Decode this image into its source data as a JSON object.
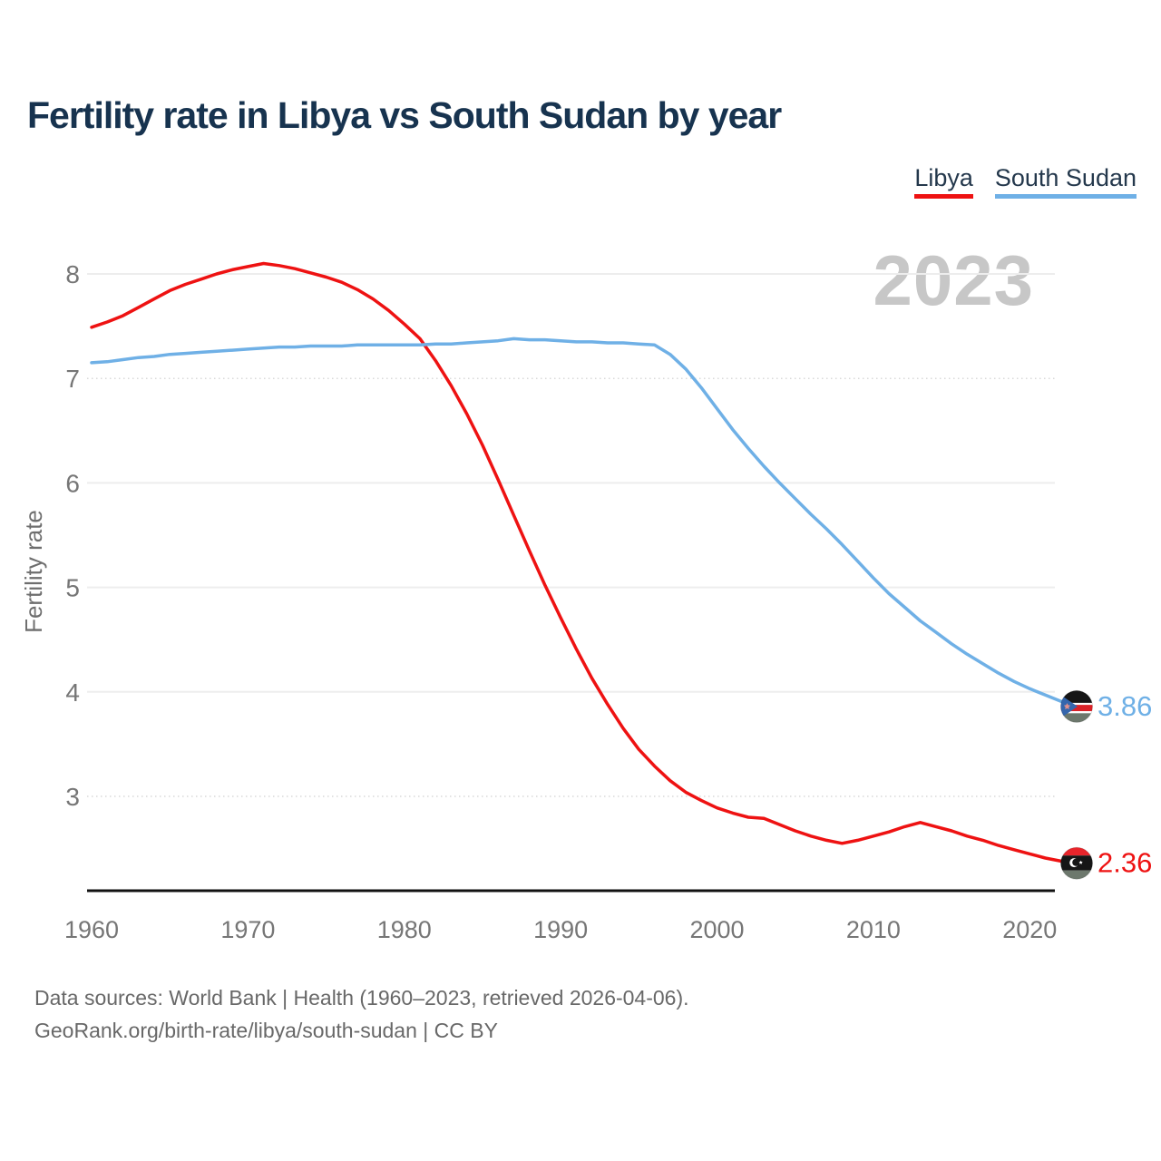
{
  "header": {
    "title": "Fertility rate in Libya vs South Sudan by year"
  },
  "legend": {
    "items": [
      {
        "label": "Libya",
        "color": "#ee1212"
      },
      {
        "label": "South Sudan",
        "color": "#6fb0e6"
      }
    ]
  },
  "chart_data": {
    "type": "line",
    "title": "Fertility rate in Libya vs South Sudan by year",
    "ylabel": "Fertility rate",
    "xlabel": "",
    "year_watermark": "2023",
    "grid": "horizontal",
    "legend_position": "top-right",
    "xlim": [
      1960,
      2023
    ],
    "ylim": [
      2.07,
      8.28
    ],
    "x_ticks": [
      1960,
      1970,
      1980,
      1990,
      2000,
      2010,
      2020
    ],
    "y_ticks": [
      {
        "value": 8,
        "style": "solid"
      },
      {
        "value": 7,
        "style": "dotted"
      },
      {
        "value": 6,
        "style": "solid"
      },
      {
        "value": 5,
        "style": "solid"
      },
      {
        "value": 4,
        "style": "solid"
      },
      {
        "value": 3,
        "style": "dotted"
      }
    ],
    "years": [
      1960,
      1961,
      1962,
      1963,
      1964,
      1965,
      1966,
      1967,
      1968,
      1969,
      1970,
      1971,
      1972,
      1973,
      1974,
      1975,
      1976,
      1977,
      1978,
      1979,
      1980,
      1981,
      1982,
      1983,
      1984,
      1985,
      1986,
      1987,
      1988,
      1989,
      1990,
      1991,
      1992,
      1993,
      1994,
      1995,
      1996,
      1997,
      1998,
      1999,
      2000,
      2001,
      2002,
      2003,
      2004,
      2005,
      2006,
      2007,
      2008,
      2009,
      2010,
      2011,
      2012,
      2013,
      2014,
      2015,
      2016,
      2017,
      2018,
      2019,
      2020,
      2021,
      2022,
      2023
    ],
    "series": [
      {
        "name": "Libya",
        "color": "#ee1212",
        "values": [
          7.49,
          7.54,
          7.6,
          7.68,
          7.76,
          7.84,
          7.9,
          7.95,
          8.0,
          8.04,
          8.07,
          8.1,
          8.08,
          8.05,
          8.01,
          7.97,
          7.92,
          7.85,
          7.76,
          7.65,
          7.52,
          7.38,
          7.17,
          6.93,
          6.66,
          6.36,
          6.03,
          5.69,
          5.35,
          5.02,
          4.71,
          4.41,
          4.13,
          3.88,
          3.65,
          3.45,
          3.29,
          3.15,
          3.04,
          2.96,
          2.89,
          2.84,
          2.8,
          2.79,
          2.73,
          2.67,
          2.62,
          2.58,
          2.55,
          2.58,
          2.62,
          2.66,
          2.71,
          2.75,
          2.71,
          2.67,
          2.62,
          2.58,
          2.53,
          2.49,
          2.45,
          2.41,
          2.38,
          2.36
        ]
      },
      {
        "name": "South Sudan",
        "color": "#6fb0e6",
        "values": [
          7.15,
          7.16,
          7.18,
          7.2,
          7.21,
          7.23,
          7.24,
          7.25,
          7.26,
          7.27,
          7.28,
          7.29,
          7.3,
          7.3,
          7.31,
          7.31,
          7.31,
          7.32,
          7.32,
          7.32,
          7.32,
          7.32,
          7.33,
          7.33,
          7.34,
          7.35,
          7.36,
          7.38,
          7.37,
          7.37,
          7.36,
          7.35,
          7.35,
          7.34,
          7.34,
          7.33,
          7.32,
          7.23,
          7.09,
          6.91,
          6.71,
          6.51,
          6.33,
          6.16,
          6.0,
          5.85,
          5.7,
          5.56,
          5.41,
          5.25,
          5.09,
          4.94,
          4.81,
          4.68,
          4.57,
          4.46,
          4.36,
          4.27,
          4.18,
          4.1,
          4.03,
          3.97,
          3.91,
          3.86
        ]
      }
    ],
    "end_labels": {
      "south_sudan": {
        "value": "3.86",
        "flag": "south-sudan-flag"
      },
      "libya": {
        "value": "2.36",
        "flag": "libya-flag"
      }
    }
  },
  "footer": {
    "line1": "Data sources: World Bank | Health (1960–2023, retrieved 2026-04-06).",
    "line2": "GeoRank.org/birth-rate/libya/south-sudan | CC BY"
  }
}
